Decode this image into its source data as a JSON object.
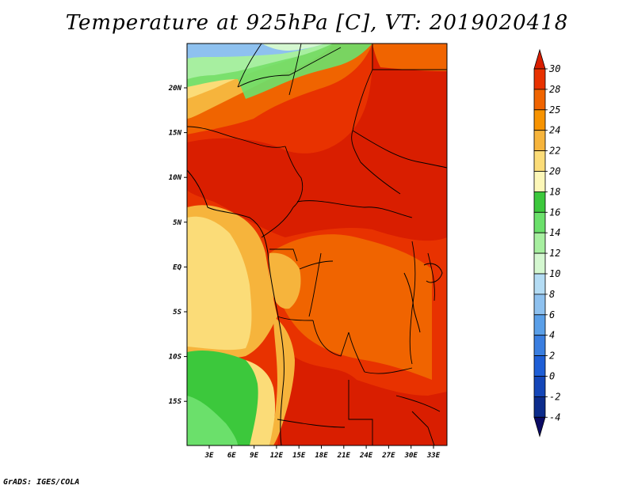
{
  "title": "Temperature at 925hPa [C], VT: 2019020418",
  "credit": "GrADS: IGES/COLA",
  "map": {
    "lon_ticks": [
      "3E",
      "6E",
      "9E",
      "12E",
      "15E",
      "18E",
      "21E",
      "24E",
      "27E",
      "30E",
      "33E"
    ],
    "lat_ticks": [
      "20N",
      "15N",
      "10N",
      "5N",
      "EQ",
      "5S",
      "10S",
      "15S"
    ]
  },
  "colorbar": {
    "labels": [
      "30",
      "28",
      "25",
      "24",
      "22",
      "20",
      "18",
      "16",
      "14",
      "12",
      "10",
      "8",
      "6",
      "4",
      "2",
      "0",
      "-2",
      "-4"
    ],
    "colors": {
      "above_30": "#d91e00",
      "28_30": "#e83200",
      "25_28": "#f06400",
      "24_25": "#f79300",
      "22_24": "#f6b43c",
      "20_22": "#fbdc78",
      "18_20": "#fdf7b8",
      "16_18": "#3cc83c",
      "14_16": "#6be06b",
      "12_14": "#a7efa0",
      "10_12": "#d4f7d0",
      "8_10": "#b4dcf4",
      "6_8": "#8ec1ef",
      "4_6": "#5a9fe8",
      "2_4": "#3a7ee0",
      "0_2": "#1e5ed6",
      "m2_0": "#1446b8",
      "m4_m2": "#0c2c8c",
      "below_m4": "#0a0a64"
    }
  }
}
